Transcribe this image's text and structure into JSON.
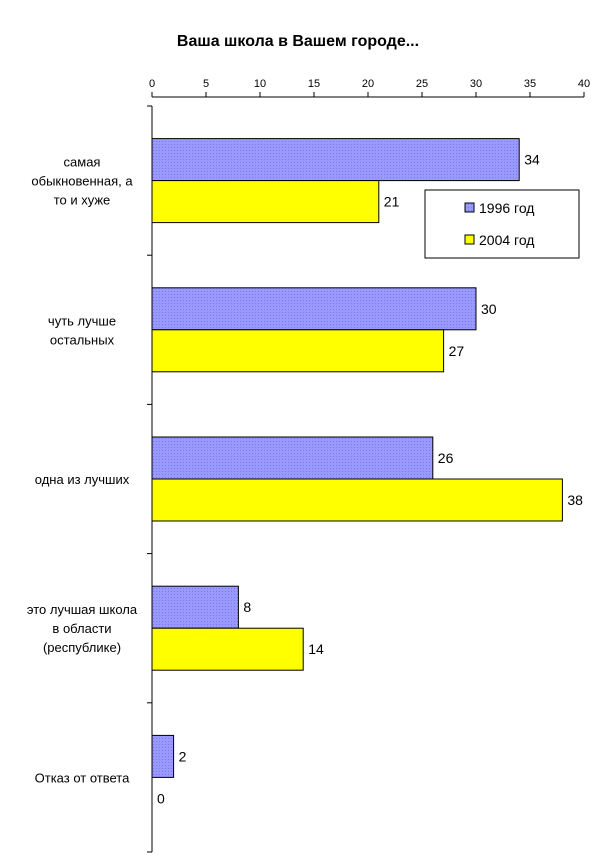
{
  "chart_data": {
    "type": "bar",
    "orientation": "horizontal",
    "title": "Ваша школа в Вашем городе...",
    "categories": [
      [
        "самая",
        "обыкновенная, а",
        "то и хуже"
      ],
      [
        "чуть лучше",
        "остальных"
      ],
      [
        "одна из лучших"
      ],
      [
        "это лучшая школа",
        "в области",
        "(республике)"
      ],
      [
        "Отказ от ответа"
      ]
    ],
    "series": [
      {
        "name": "1996 год",
        "values": [
          34,
          30,
          26,
          8,
          2
        ],
        "color": "#9999ff"
      },
      {
        "name": "2004 год",
        "values": [
          21,
          27,
          38,
          14,
          0
        ],
        "color": "#ffff00"
      }
    ],
    "xlim": [
      0,
      40
    ],
    "xticks": [
      0,
      5,
      10,
      15,
      20,
      25,
      30,
      35,
      40
    ],
    "axis_position": "top",
    "grid": false,
    "legend_position": "top-right"
  }
}
